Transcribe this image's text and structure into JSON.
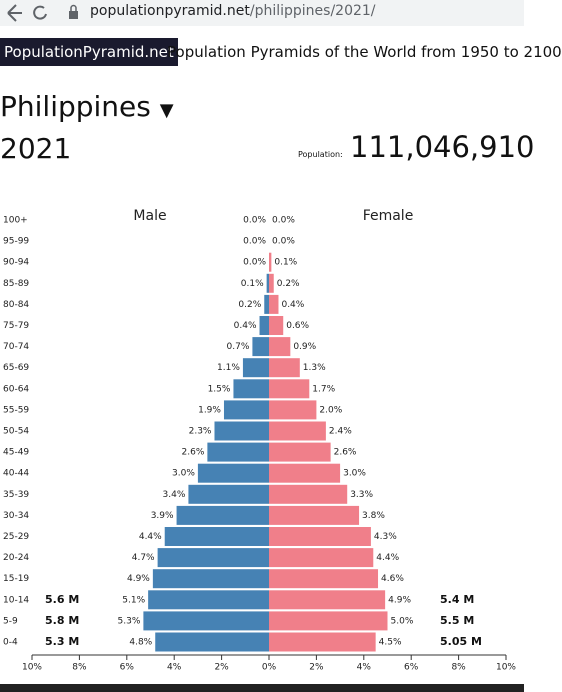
{
  "browser": {
    "url_host": "populationpyramid.net",
    "url_path": "/philippines/2021/"
  },
  "header": {
    "brand": "PopulationPyramid.net",
    "tagline": "Population Pyramids of the World from 1950 to 2100"
  },
  "country": "Philippines",
  "year": "2021",
  "population_label": "Population:",
  "population": "111,046,910",
  "chart_data": {
    "type": "pyramid",
    "categories": [
      "100+",
      "95-99",
      "90-94",
      "85-89",
      "80-84",
      "75-79",
      "70-74",
      "65-69",
      "60-64",
      "55-59",
      "50-54",
      "45-49",
      "40-44",
      "35-39",
      "30-34",
      "25-29",
      "20-24",
      "15-19",
      "10-14",
      "5-9",
      "0-4"
    ],
    "series": [
      {
        "name": "Male",
        "color": "#4682b4",
        "values": [
          0.0,
          0.0,
          0.0,
          0.1,
          0.2,
          0.4,
          0.7,
          1.1,
          1.5,
          1.9,
          2.3,
          2.6,
          3.0,
          3.4,
          3.9,
          4.4,
          4.7,
          4.9,
          5.1,
          5.3,
          4.8
        ],
        "value_labels": [
          "0.0%",
          "0.0%",
          "0.0%",
          "0.1%",
          "0.2%",
          "0.4%",
          "0.7%",
          "1.1%",
          "1.5%",
          "1.9%",
          "2.3%",
          "2.6%",
          "3.0%",
          "3.4%",
          "3.9%",
          "4.4%",
          "4.7%",
          "4.9%",
          "5.1%",
          "5.3%",
          "4.8%"
        ],
        "annotations": [
          "5.6 M",
          "5.8 M",
          "5.3 M"
        ]
      },
      {
        "name": "Female",
        "color": "#f07f8a",
        "values": [
          0.0,
          0.0,
          0.1,
          0.2,
          0.4,
          0.6,
          0.9,
          1.3,
          1.7,
          2.0,
          2.4,
          2.6,
          3.0,
          3.3,
          3.8,
          4.3,
          4.4,
          4.6,
          4.9,
          5.0,
          4.5
        ],
        "value_labels": [
          "0.0%",
          "0.0%",
          "0.1%",
          "0.2%",
          "0.4%",
          "0.6%",
          "0.9%",
          "1.3%",
          "1.7%",
          "2.0%",
          "2.4%",
          "2.6%",
          "3.0%",
          "3.3%",
          "3.8%",
          "4.3%",
          "4.4%",
          "4.6%",
          "4.9%",
          "5.0%",
          "4.5%"
        ],
        "annotations": [
          "5.4 M",
          "5.5 M",
          "5.05 M"
        ]
      }
    ],
    "xlim": [
      -10,
      10
    ],
    "xticks": [
      {
        "value": -10,
        "label": "10%"
      },
      {
        "value": -8,
        "label": "8%"
      },
      {
        "value": -6,
        "label": "6%"
      },
      {
        "value": -4,
        "label": "4%"
      },
      {
        "value": -2,
        "label": "2%"
      },
      {
        "value": 0,
        "label": "0%"
      },
      {
        "value": 2,
        "label": "2%"
      },
      {
        "value": 4,
        "label": "4%"
      },
      {
        "value": 6,
        "label": "6%"
      },
      {
        "value": 8,
        "label": "8%"
      },
      {
        "value": 10,
        "label": "10%"
      }
    ]
  }
}
